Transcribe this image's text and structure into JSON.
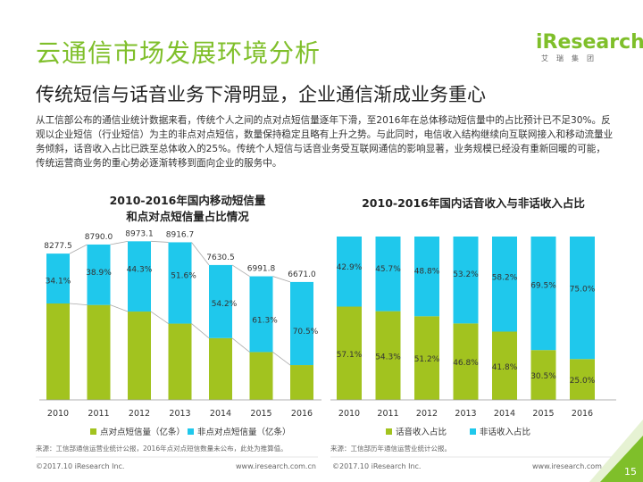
{
  "header": {
    "title": "云通信市场发展环境分析",
    "subtitle": "传统短信与话音业务下滑明显，企业通信渐成业务重心",
    "intro": "从工信部公布的通信业统计数据来看，传统个人之间的点对点短信量逐年下滑，至2016年在总体移动短信量中的占比预计已不足30%。反观以企业短信（行业短信）为主的非点对点短信，数量保持稳定且略有上升之势。与此同时，电信收入结构继续向互联网接入和移动流量业务倾斜，话音收入占比已跌至总体收入的25%。传统个人短信与话音业务受互联网通信的影响显著，业务规模已经没有重新回暖的可能，传统运营商业务的重心势必逐渐转移到面向企业的服务中。"
  },
  "logo": {
    "text": "iResearch",
    "sub": "艾瑞集团"
  },
  "colors": {
    "green": "#a2c31f",
    "cyan": "#1fc8ec",
    "title_green": "#7fbf2a"
  },
  "chart_data": [
    {
      "type": "bar",
      "stacked": true,
      "title": "2010-2016年国内移动短信量\n和点对点短信量占比情况",
      "categories": [
        "2010",
        "2011",
        "2012",
        "2013",
        "2014",
        "2015",
        "2016"
      ],
      "totals": [
        8277.5,
        8790.0,
        8973.1,
        8916.7,
        7630.5,
        6991.8,
        6671.0
      ],
      "total_labels": [
        "8277.5",
        "8790.0",
        "8973.1",
        "8916.7",
        "7630.5",
        "6991.8",
        "6671.0"
      ],
      "series": [
        {
          "name": "点对点短信量（亿条）",
          "color": "#a2c31f",
          "share": [
            0.659,
            0.611,
            0.557,
            0.484,
            0.458,
            0.387,
            0.295
          ]
        },
        {
          "name": "非点对点短信量（亿条）",
          "color": "#1fc8ec",
          "share": [
            0.341,
            0.389,
            0.443,
            0.516,
            0.542,
            0.613,
            0.705
          ],
          "labels": [
            "34.1%",
            "38.9%",
            "44.3%",
            "51.6%",
            "54.2%",
            "61.3%",
            "70.5%"
          ]
        }
      ],
      "ylim": [
        0,
        10000
      ],
      "grid": false,
      "source": "来源：工信部通信运营业统计公报，2016年点对点短信数量未公布，此处为推算值。"
    },
    {
      "type": "bar",
      "stacked": true,
      "percent": true,
      "title": "2010-2016年国内话音收入与非话收入占比",
      "categories": [
        "2010",
        "2011",
        "2012",
        "2013",
        "2014",
        "2015",
        "2016"
      ],
      "series": [
        {
          "name": "话音收入占比",
          "color": "#a2c31f",
          "values": [
            57.1,
            54.3,
            51.2,
            46.8,
            41.8,
            30.5,
            25.0
          ],
          "labels": [
            "57.1%",
            "54.3%",
            "51.2%",
            "46.8%",
            "41.8%",
            "30.5%",
            "25.0%"
          ]
        },
        {
          "name": "非话收入占比",
          "color": "#1fc8ec",
          "values": [
            42.9,
            45.7,
            48.8,
            53.2,
            58.2,
            69.5,
            75.0
          ],
          "labels": [
            "42.9%",
            "45.7%",
            "48.8%",
            "53.2%",
            "58.2%",
            "69.5%",
            "75.0%"
          ]
        }
      ],
      "ylim": [
        0,
        100
      ],
      "grid": false,
      "source": "来源：工信部历年通信运营业统计公报。"
    }
  ],
  "footer": {
    "left_copyright": "©2017.10 iResearch Inc.",
    "left_url": "www.iresearch.com.cn",
    "right_copyright": "©2017.10 iResearch Inc.",
    "right_url": "www.iresearch.com.cn",
    "page_number": "15"
  }
}
